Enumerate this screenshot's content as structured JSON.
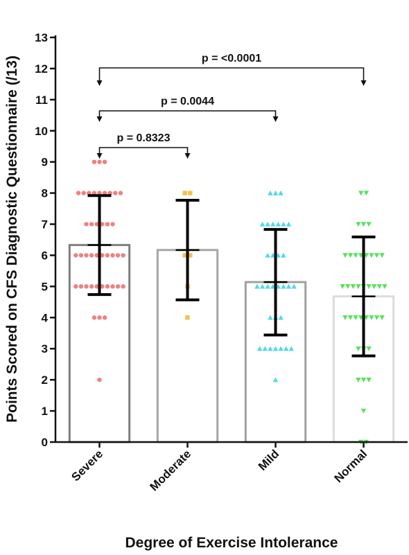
{
  "chart_data": {
    "type": "bar",
    "xlabel": "Degree of Exercise Intolerance",
    "ylabel": "Points Scored on CFS Diagnostic Questionnaire (/13)",
    "ylim": [
      0,
      13
    ],
    "yticks": [
      0,
      1,
      2,
      3,
      4,
      5,
      6,
      7,
      8,
      9,
      10,
      11,
      12,
      13
    ],
    "categories": [
      "Severe",
      "Moderate",
      "Mild",
      "Normal"
    ],
    "means": [
      6.33,
      6.17,
      5.14,
      4.68
    ],
    "sd_upper": [
      7.92,
      7.77,
      6.83,
      6.59
    ],
    "sd_lower": [
      4.74,
      4.57,
      3.44,
      2.77
    ],
    "bar_edge_colors": [
      "#7f7f7f",
      "#a6a6a6",
      "#a0a0a0",
      "#dcdcdc"
    ],
    "point_colors": [
      "#f08080",
      "#f5c04a",
      "#4fd9e6",
      "#56e35a"
    ],
    "point_markers": [
      "circle",
      "square",
      "triangle-up",
      "triangle-down"
    ],
    "points": [
      [
        9,
        9,
        9,
        8,
        8,
        8,
        8,
        8,
        8,
        8,
        8,
        8,
        7,
        7,
        7,
        7,
        7,
        7,
        6,
        6,
        6,
        6,
        6,
        6,
        6,
        6,
        6,
        6,
        5,
        5,
        5,
        5,
        5,
        5,
        5,
        5,
        5,
        5,
        4,
        4,
        4,
        2
      ],
      [
        8,
        8,
        6,
        6,
        5,
        4
      ],
      [
        8,
        8,
        8,
        7,
        7,
        7,
        7,
        7,
        7,
        6,
        6,
        6,
        6,
        5,
        5,
        5,
        5,
        5,
        5,
        5,
        5,
        4,
        4,
        4,
        3,
        3,
        3,
        3,
        3,
        3,
        3,
        2
      ],
      [
        8,
        8,
        7,
        7,
        7,
        6,
        6,
        6,
        6,
        6,
        6,
        6,
        6,
        5,
        5,
        5,
        5,
        5,
        5,
        5,
        5,
        5,
        4,
        4,
        4,
        4,
        4,
        4,
        4,
        4,
        3,
        3,
        3,
        2,
        2,
        2,
        1,
        0,
        0
      ]
    ],
    "comparisons": [
      {
        "from": 0,
        "to": 1,
        "label": "p = 0.8323"
      },
      {
        "from": 0,
        "to": 2,
        "label": "p = 0.0044"
      },
      {
        "from": 0,
        "to": 3,
        "label": "p = <0.0001"
      }
    ]
  }
}
